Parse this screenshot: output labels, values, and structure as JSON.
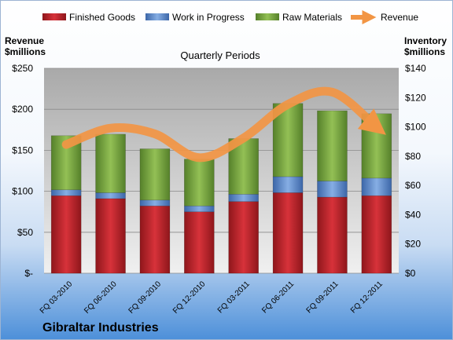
{
  "chart_data": {
    "type": "bar",
    "subtype": "stacked-bar-with-line",
    "title": "Quarterly Periods",
    "company": "Gibraltar Industries",
    "left_axis": {
      "label_line1": "Revenue",
      "label_line2": "$millions",
      "min": 0,
      "max": 250,
      "step": 50,
      "tick_labels": [
        "$-",
        "$50",
        "$100",
        "$150",
        "$200",
        "$250"
      ]
    },
    "right_axis": {
      "label_line1": "Inventory",
      "label_line2": "$millions",
      "min": 0,
      "max": 140,
      "step": 20,
      "tick_labels": [
        "$0",
        "$20",
        "$40",
        "$60",
        "$80",
        "$100",
        "$120",
        "$140"
      ]
    },
    "categories": [
      "FQ 03-2010",
      "FQ 06-2010",
      "FQ 09-2010",
      "FQ 12-2010",
      "FQ 03-2011",
      "FQ 06-2011",
      "FQ 09-2011",
      "FQ 12-2011"
    ],
    "series": [
      {
        "name": "Finished Goods",
        "axis": "right",
        "color": "#c0272d",
        "values": [
          53,
          51,
          46,
          42,
          49,
          55,
          52,
          53
        ]
      },
      {
        "name": "Work in Progress",
        "axis": "right",
        "color": "#5b86c9",
        "values": [
          4,
          4,
          4,
          4,
          5,
          11,
          11,
          12
        ]
      },
      {
        "name": "Raw Materials",
        "axis": "right",
        "color": "#76a33e",
        "values": [
          37,
          40,
          35,
          32,
          38,
          50,
          48,
          44
        ]
      },
      {
        "name": "Revenue",
        "axis": "left",
        "type": "line",
        "color": "#f29544",
        "values": [
          157,
          177,
          170,
          141,
          165,
          206,
          221,
          178
        ]
      }
    ],
    "grid": true,
    "legend_position": "top"
  }
}
